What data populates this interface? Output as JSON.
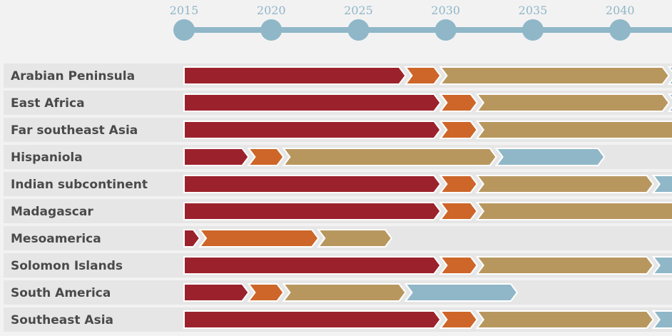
{
  "chart_data": {
    "type": "timeline-stacked-bar",
    "x_range": [
      2015,
      2043
    ],
    "timeline_years": [
      "2015",
      "2020",
      "2025",
      "2030",
      "2035",
      "2040"
    ],
    "colors": {
      "phase1": "#9b222d",
      "phase2": "#cd6628",
      "phase3": "#b8975f",
      "phase4": "#8fb7c8",
      "timeline": "#8fb7c8",
      "row_band": "#e7e6e6",
      "label": "#4a4a4a"
    },
    "rows": [
      {
        "label": "Arabian Peninsula",
        "segments": [
          2015,
          2027.7,
          2029.7,
          2042.8,
          2043.5
        ]
      },
      {
        "label": "East Africa",
        "segments": [
          2015,
          2029.7,
          2031.8,
          2042.8,
          2043.5
        ]
      },
      {
        "label": "Far southeast Asia",
        "segments": [
          2015,
          2029.7,
          2031.8,
          2043.5
        ]
      },
      {
        "label": "Hispaniola",
        "segments": [
          2015,
          2018.7,
          2020.7,
          2032.9,
          2039.1
        ]
      },
      {
        "label": "Indian subcontinent",
        "segments": [
          2015,
          2029.7,
          2031.8,
          2041.9,
          2043.5
        ]
      },
      {
        "label": "Madagascar",
        "segments": [
          2015,
          2029.7,
          2031.8,
          2043.5
        ]
      },
      {
        "label": "Mesoamerica",
        "segments": [
          2015,
          2015.9,
          2022.7,
          2026.9
        ]
      },
      {
        "label": "Solomon Islands",
        "segments": [
          2015,
          2029.7,
          2031.8,
          2041.9,
          2043.5
        ]
      },
      {
        "label": "South America",
        "segments": [
          2015,
          2018.7,
          2020.7,
          2027.7,
          2034.1
        ]
      },
      {
        "label": "Southeast Asia",
        "segments": [
          2015,
          2029.7,
          2031.8,
          2041.9,
          2043.5
        ]
      }
    ]
  }
}
